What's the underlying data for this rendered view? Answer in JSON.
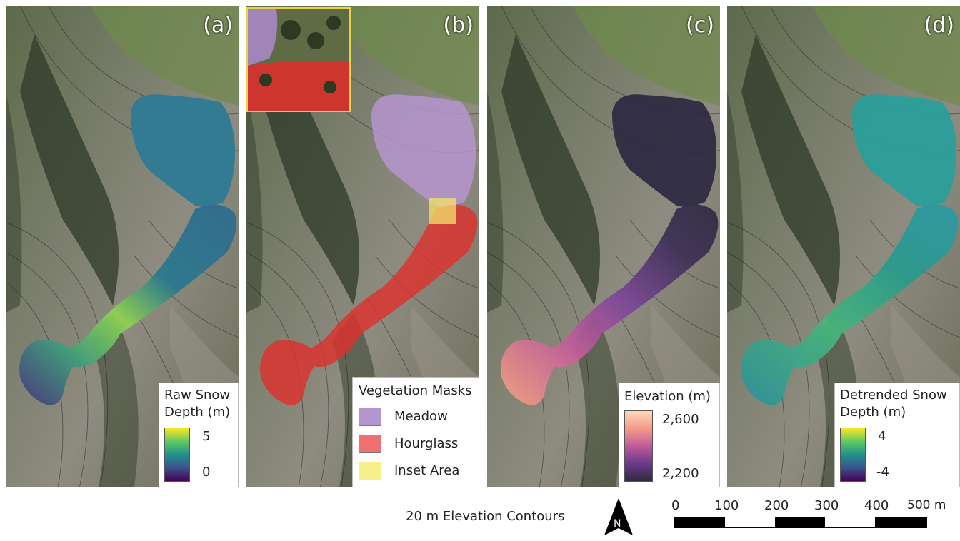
{
  "panels": [
    {
      "label": "(a)"
    },
    {
      "label": "(b)"
    },
    {
      "label": "(c)"
    },
    {
      "label": "(d)"
    }
  ],
  "legend_a": {
    "title1": "Raw Snow",
    "title2": "Depth (m)",
    "max": "5",
    "min": "0",
    "colormap": [
      "#fde725",
      "#5ec962",
      "#21918c",
      "#3b528b",
      "#440154"
    ]
  },
  "legend_b": {
    "title": "Vegetation Masks",
    "items": [
      {
        "label": "Meadow",
        "color": "#b595cf"
      },
      {
        "label": "Hourglass",
        "color": "#ee7070"
      },
      {
        "label": "Inset Area",
        "color": "#f7f08c"
      }
    ]
  },
  "legend_c": {
    "title": "Elevation (m)",
    "max": "2,600",
    "min": "2,200",
    "colormap": [
      "#fdd8b8",
      "#f59a8a",
      "#c05b9a",
      "#6b3a8b",
      "#2e2b3e"
    ]
  },
  "legend_d": {
    "title1": "Detrended Snow",
    "title2": "Depth (m)",
    "max": "4",
    "min": "-4",
    "colormap": [
      "#fde725",
      "#5ec962",
      "#21918c",
      "#3b528b",
      "#440154"
    ]
  },
  "contour_legend": "20 m Elevation Contours",
  "north_arrow": "N",
  "scale_bar": {
    "labels": [
      "0",
      "100",
      "200",
      "300",
      "400",
      "500 m"
    ]
  },
  "colors": {
    "meadow_mask": "#b595cf",
    "hourglass_mask": "#e0302c",
    "inset_mask": "#f3e36b"
  }
}
